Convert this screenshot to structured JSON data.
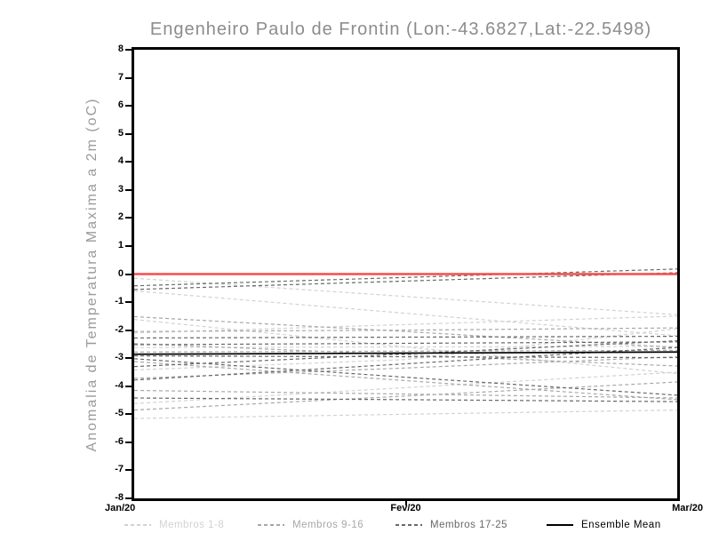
{
  "chart_data": {
    "type": "line",
    "title": "Engenheiro Paulo de Frontin (Lon:-43.6827,Lat:-22.5498)",
    "ylabel": "Anomalia de Temperatura Maxima a 2m (oC)",
    "x": [
      "Jan/20",
      "Fev/20",
      "Mar/20"
    ],
    "ylim": [
      -8,
      8
    ],
    "y_ticks": [
      -8,
      -7,
      -6,
      -5,
      -4,
      -3,
      -2,
      -1,
      0,
      1,
      2,
      3,
      4,
      5,
      6,
      7,
      8
    ],
    "grid": false,
    "legend_position": "bottom",
    "zero_line": {
      "value": 0,
      "color": "#f74d4a"
    },
    "groups": [
      {
        "label": "Membros 1-8",
        "color": "#d2d2d2",
        "style": "dashed"
      },
      {
        "label": "Membros 9-16",
        "color": "#a8a8a8",
        "style": "dashed"
      },
      {
        "label": "Membros 17-25",
        "color": "#686868",
        "style": "dashed"
      },
      {
        "label": "Ensemble Mean",
        "color": "#000000",
        "style": "solid"
      }
    ],
    "ensemble_mean": {
      "values": [
        -2.86,
        -2.82,
        -2.78
      ]
    },
    "members": [
      {
        "name": "member-1",
        "group": 0,
        "values": [
          -0.15,
          -0.8,
          -1.45
        ]
      },
      {
        "name": "member-2",
        "group": 0,
        "values": [
          -0.6,
          -1.4,
          -2.2
        ]
      },
      {
        "name": "member-3",
        "group": 0,
        "values": [
          -1.62,
          -2.6,
          -3.55
        ]
      },
      {
        "name": "member-4",
        "group": 0,
        "values": [
          -2.1,
          -1.8,
          -1.5
        ]
      },
      {
        "name": "member-5",
        "group": 0,
        "values": [
          -2.62,
          -2.6,
          -2.58
        ]
      },
      {
        "name": "member-6",
        "group": 0,
        "values": [
          -3.42,
          -3.05,
          -1.95
        ]
      },
      {
        "name": "member-7",
        "group": 0,
        "values": [
          -4.62,
          -4.05,
          -3.5
        ]
      },
      {
        "name": "member-8",
        "group": 0,
        "values": [
          -5.15,
          -5.0,
          -4.85
        ]
      },
      {
        "name": "member-9",
        "group": 1,
        "values": [
          -1.52,
          -2.05,
          -2.62
        ]
      },
      {
        "name": "member-10",
        "group": 1,
        "values": [
          -2.05,
          -2.0,
          -1.92
        ]
      },
      {
        "name": "member-11",
        "group": 1,
        "values": [
          -2.48,
          -2.88,
          -3.28
        ]
      },
      {
        "name": "member-12",
        "group": 1,
        "values": [
          -2.78,
          -2.75,
          -2.72
        ]
      },
      {
        "name": "member-13",
        "group": 1,
        "values": [
          -3.12,
          -3.8,
          -4.48
        ]
      },
      {
        "name": "member-14",
        "group": 1,
        "values": [
          -3.72,
          -3.35,
          -2.95
        ]
      },
      {
        "name": "member-15",
        "group": 1,
        "values": [
          -4.15,
          -4.28,
          -4.42
        ]
      },
      {
        "name": "member-16",
        "group": 1,
        "values": [
          -4.85,
          -4.35,
          -3.85
        ]
      },
      {
        "name": "member-17",
        "group": 2,
        "values": [
          -0.42,
          -0.12,
          0.18
        ]
      },
      {
        "name": "member-18",
        "group": 2,
        "values": [
          -0.55,
          -0.25,
          0.05
        ]
      },
      {
        "name": "member-19",
        "group": 2,
        "values": [
          -2.28,
          -2.25,
          -2.22
        ]
      },
      {
        "name": "member-20",
        "group": 2,
        "values": [
          -2.52,
          -2.47,
          -2.42
        ]
      },
      {
        "name": "member-21",
        "group": 2,
        "values": [
          -2.92,
          -2.95,
          -2.98
        ]
      },
      {
        "name": "member-22",
        "group": 2,
        "values": [
          -3.3,
          -2.85,
          -2.38
        ]
      },
      {
        "name": "member-23",
        "group": 2,
        "values": [
          -3.02,
          -3.68,
          -4.32
        ]
      },
      {
        "name": "member-24",
        "group": 2,
        "values": [
          -3.78,
          -3.2,
          -2.62
        ]
      },
      {
        "name": "member-25",
        "group": 2,
        "values": [
          -4.42,
          -4.48,
          -4.55
        ]
      }
    ]
  }
}
